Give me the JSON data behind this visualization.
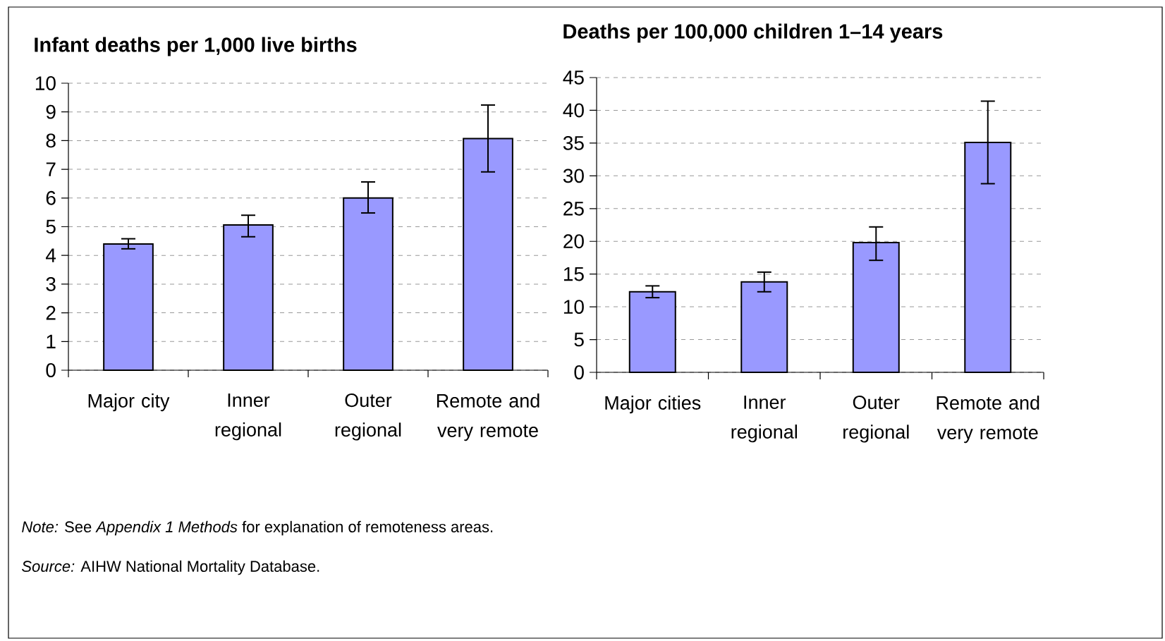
{
  "chart_data": [
    {
      "type": "bar",
      "title": "Infant deaths per 1,000 live births",
      "categories": [
        "Major city",
        "Inner regional",
        "Outer regional",
        "Remote and very remote"
      ],
      "values": [
        4.4,
        5.06,
        6.0,
        8.07
      ],
      "errors": [
        [
          4.23,
          4.58
        ],
        [
          4.65,
          5.4
        ],
        [
          5.48,
          6.56
        ],
        [
          6.91,
          9.24
        ]
      ],
      "color": "#9999ff",
      "ylim": [
        0,
        10
      ],
      "yticks": [
        0,
        1,
        2,
        3,
        4,
        5,
        6,
        7,
        8,
        9,
        10
      ],
      "grid": "y",
      "annotations": [
        "*Note:* See *Appendix 1 Methods* for explanation of remoteness areas.",
        "*Source:* AIHW National Mortality Database."
      ]
    },
    {
      "type": "bar",
      "title": "Deaths per 100,000 children 1–14 years",
      "categories": [
        "Major cities",
        "Inner regional",
        "Outer regional",
        "Remote and very remote"
      ],
      "values": [
        12.3,
        13.8,
        19.8,
        35.1
      ],
      "errors": [
        [
          11.4,
          13.2
        ],
        [
          12.3,
          15.3
        ],
        [
          17.1,
          22.2
        ],
        [
          28.8,
          41.4
        ]
      ],
      "color": "#9999ff",
      "ylim": [
        0,
        45
      ],
      "yticks": [
        0,
        5,
        10,
        15,
        20,
        25,
        30,
        35,
        40,
        45
      ],
      "grid": "y"
    }
  ]
}
